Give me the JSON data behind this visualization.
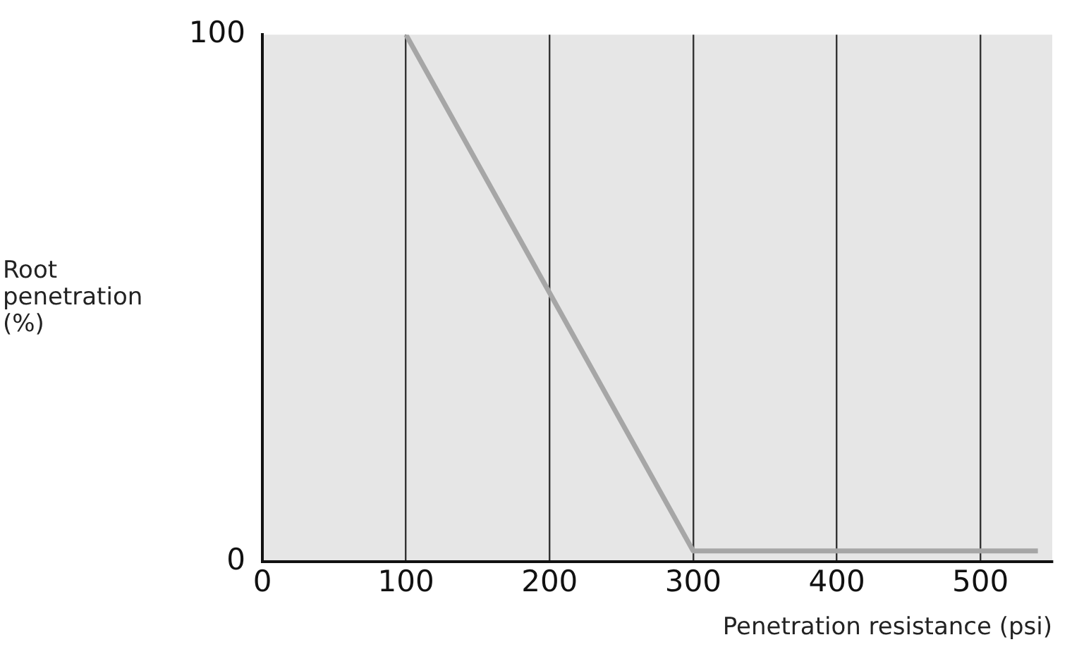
{
  "chart_data": {
    "type": "line",
    "xlabel": "Penetration resistance (psi)",
    "ylabel": "Root penetration (%)",
    "x": [
      100,
      300,
      540
    ],
    "series": [
      {
        "color": "#a6a6a6",
        "values": [
          100,
          2,
          2
        ]
      }
    ],
    "xlim": [
      0,
      550
    ],
    "xticks": [
      0,
      100,
      200,
      300,
      400,
      500
    ],
    "ylim": [
      0,
      100
    ],
    "yticks": [
      0,
      100
    ],
    "grid": "x",
    "legend": false,
    "marker": "none",
    "line_style": "solid"
  }
}
